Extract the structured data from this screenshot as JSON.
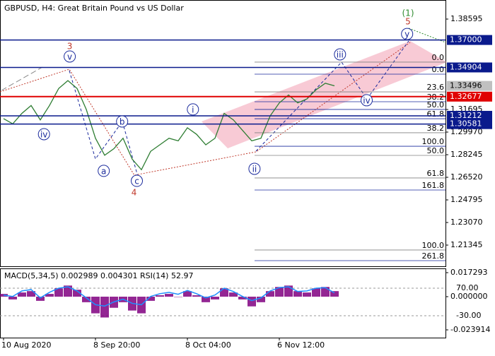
{
  "chart_data": [
    {
      "type": "line",
      "title": "GBPUSD, H4:  Great Britain Pound vs US Dollar",
      "categories": [
        "10 Aug 2020",
        null,
        null,
        null,
        null,
        null,
        null,
        null,
        null,
        null,
        "8 Sep 20:00",
        null,
        null,
        null,
        null,
        null,
        null,
        null,
        null,
        null,
        "8 Oct 04:00",
        null,
        null,
        null,
        null,
        null,
        null,
        null,
        null,
        null,
        "6 Nov 12:00",
        null,
        null,
        null,
        null,
        null,
        null,
        null,
        null,
        null,
        null,
        null,
        null,
        null,
        null,
        null,
        null,
        null,
        null
      ],
      "series": [
        {
          "color": "#2e7d32",
          "values": [
            1.31,
            1.306,
            1.314,
            1.32,
            1.309,
            1.32,
            1.333,
            1.339,
            1.333,
            1.317,
            1.295,
            1.282,
            1.287,
            1.295,
            1.279,
            1.271,
            1.285,
            1.29,
            1.295,
            1.293,
            1.303,
            1.298,
            1.29,
            1.295,
            1.314,
            1.309,
            1.301,
            1.293,
            1.295,
            1.312,
            1.322,
            1.328,
            1.322,
            1.325,
            1.332,
            1.337,
            1.335,
            null,
            null,
            null,
            null,
            null,
            null,
            null,
            null,
            null,
            null,
            null,
            null
          ]
        }
      ],
      "ylim": [
        1.19674,
        1.40051
      ],
      "yticks": [
        1.38595,
        1.31695,
        {
          "value": 1.2997,
          "label": "1.29970"
        },
        1.28245,
        {
          "value": 1.2652,
          "label": "1.26520"
        },
        1.24795,
        {
          "value": 1.2307,
          "label": "1.23070"
        },
        1.21345
      ],
      "levels": [
        {
          "value": 1.37,
          "label": "1.37000",
          "color": "#0a1a8c"
        },
        {
          "value": 1.34904,
          "label": "1.34904",
          "color": "#0a1a8c"
        },
        {
          "value": 1.33496,
          "label": "1.33496",
          "color": "#c0c0c0"
        },
        {
          "value": 1.32677,
          "label": "1.32677",
          "color": "#e00000"
        },
        {
          "value": 1.31212,
          "label": "1.31212",
          "color": "#0a1a8c"
        },
        {
          "value": 1.30581,
          "label": "1.30581",
          "color": "#0a1a8c"
        }
      ],
      "fib_levels": [
        {
          "text": "0.0",
          "price": 1.3531,
          "color": "#808080"
        },
        {
          "text": "0.0",
          "price": 1.3439,
          "color": "#1a2a9c"
        },
        {
          "text": "23.6",
          "price": 1.3304,
          "color": "#808080"
        },
        {
          "text": "38.2",
          "price": 1.3229,
          "color": "#1a2a9c"
        },
        {
          "text": "50.0",
          "price": 1.317,
          "color": "#1a2a9c"
        },
        {
          "text": "61.8",
          "price": 1.3099,
          "color": "#1a2a9c"
        },
        {
          "text": "38.2",
          "price": 1.2992,
          "color": "#808080"
        },
        {
          "text": "100.0",
          "price": 1.2889,
          "color": "#1a2a9c"
        },
        {
          "text": "50.0",
          "price": 1.2819,
          "color": "#808080"
        },
        {
          "text": "61.8",
          "price": 1.2647,
          "color": "#808080"
        },
        {
          "text": "161.8",
          "price": 1.2555,
          "color": "#1a2a9c"
        },
        {
          "text": "100.0",
          "price": 1.2097,
          "color": "#808080"
        },
        {
          "text": "261.8",
          "price": 1.2016,
          "color": "#1a2a9c"
        }
      ],
      "wave_labels": [
        {
          "text": "3",
          "x": 7.2,
          "price": 1.3655,
          "color": "#c0392b",
          "circled": false
        },
        {
          "text": "v",
          "x": 7.2,
          "price": 1.3574,
          "color": "#1a2a9c",
          "circled": true
        },
        {
          "text": "iv",
          "x": 4.4,
          "price": 1.2981,
          "color": "#1a2a9c",
          "circled": true
        },
        {
          "text": "a",
          "x": 10.9,
          "price": 1.2701,
          "color": "#1a2a9c",
          "circled": true
        },
        {
          "text": "b",
          "x": 12.9,
          "price": 1.3078,
          "color": "#1a2a9c",
          "circled": true
        },
        {
          "text": "c",
          "x": 14.5,
          "price": 1.2625,
          "color": "#1a2a9c",
          "circled": true
        },
        {
          "text": "4",
          "x": 14.2,
          "price": 1.2539,
          "color": "#c0392b",
          "circled": false
        },
        {
          "text": "i",
          "x": 20.6,
          "price": 1.317,
          "color": "#1a2a9c",
          "circled": true
        },
        {
          "text": "ii",
          "x": 27.3,
          "price": 1.2717,
          "color": "#1a2a9c",
          "circled": true
        },
        {
          "text": "iii",
          "x": 36.6,
          "price": 1.359,
          "color": "#1a2a9c",
          "circled": true
        },
        {
          "text": "iv",
          "x": 39.5,
          "price": 1.324,
          "color": "#1a2a9c",
          "circled": true
        },
        {
          "text": "y",
          "x": 43.9,
          "price": 1.3746,
          "color": "#1a2a9c",
          "circled": true
        },
        {
          "text": "5",
          "x": 44,
          "price": 1.3843,
          "color": "#c0392b",
          "circled": false
        },
        {
          "text": "(1)",
          "x": 44,
          "price": 1.3908,
          "color": "#2e8b2e",
          "circled": false
        }
      ]
    },
    {
      "type": "bar",
      "title": "MACD(5,34,5) 0.002989 0.004301 RSI(14) 52.97",
      "series": [
        {
          "color": "#800080",
          "values": [
            0.002,
            -0.002,
            0.003,
            0.004,
            -0.003,
            0.002,
            0.006,
            0.008,
            0.005,
            -0.004,
            -0.012,
            -0.015,
            -0.008,
            -0.004,
            -0.01,
            -0.012,
            -0.003,
            0.001,
            0.002,
            0.0,
            0.004,
            0.001,
            -0.004,
            -0.002,
            0.006,
            0.003,
            -0.002,
            -0.007,
            -0.004,
            0.004,
            0.007,
            0.008,
            0.004,
            0.003,
            0.006,
            0.007,
            0.004,
            null,
            null,
            null,
            null,
            null,
            null,
            null,
            null,
            null,
            null,
            null,
            null
          ]
        },
        {
          "color": "#1e90ff",
          "axis": "y2",
          "values": [
            45,
            40,
            60,
            65,
            35,
            55,
            70,
            75,
            60,
            35,
            10,
            5,
            20,
            30,
            15,
            10,
            40,
            50,
            55,
            48,
            62,
            50,
            35,
            45,
            70,
            58,
            40,
            25,
            35,
            60,
            72,
            75,
            58,
            60,
            70,
            72,
            52.97,
            null,
            null,
            null,
            null,
            null,
            null,
            null,
            null,
            null,
            null,
            null,
            null
          ]
        }
      ],
      "ylim": [
        -0.02951,
        0.02035
      ],
      "yticks": [
        0.017293,
        {
          "value": 0,
          "label": "0.000000"
        },
        -0.023914
      ],
      "y2lim": [
        -109.5,
        141.8
      ],
      "y2ticks": [
        {
          "value": 70,
          "label": "70.00"
        },
        {
          "value": -30,
          "label": "-30.00"
        }
      ]
    }
  ]
}
